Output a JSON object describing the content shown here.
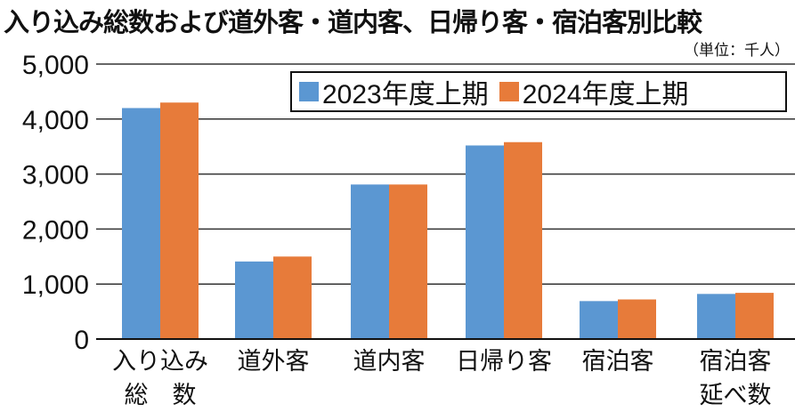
{
  "chart_data": {
    "type": "bar",
    "title": "入り込み総数および道外客・道内客、日帰り客・宿泊客別比較",
    "unit_note": "（単位：千人）",
    "categories": [
      [
        "入り込み",
        "総　数"
      ],
      [
        "道外客"
      ],
      [
        "道内客"
      ],
      [
        "日帰り客"
      ],
      [
        "宿泊客"
      ],
      [
        "宿泊客",
        "延べ数"
      ]
    ],
    "series": [
      {
        "name": "2023年度上期",
        "color": "#5b97d2",
        "values": [
          4200,
          1410,
          2810,
          3520,
          690,
          820
        ]
      },
      {
        "name": "2024年度上期",
        "color": "#e77b3a",
        "values": [
          4300,
          1500,
          2810,
          3580,
          720,
          840
        ]
      }
    ],
    "yticks": [
      "0",
      "1,000",
      "2,000",
      "3,000",
      "4,000",
      "5,000"
    ],
    "ytick_values": [
      0,
      1000,
      2000,
      3000,
      4000,
      5000
    ],
    "ylim": [
      0,
      5000
    ],
    "grid": true,
    "legend_position": "top-right"
  }
}
